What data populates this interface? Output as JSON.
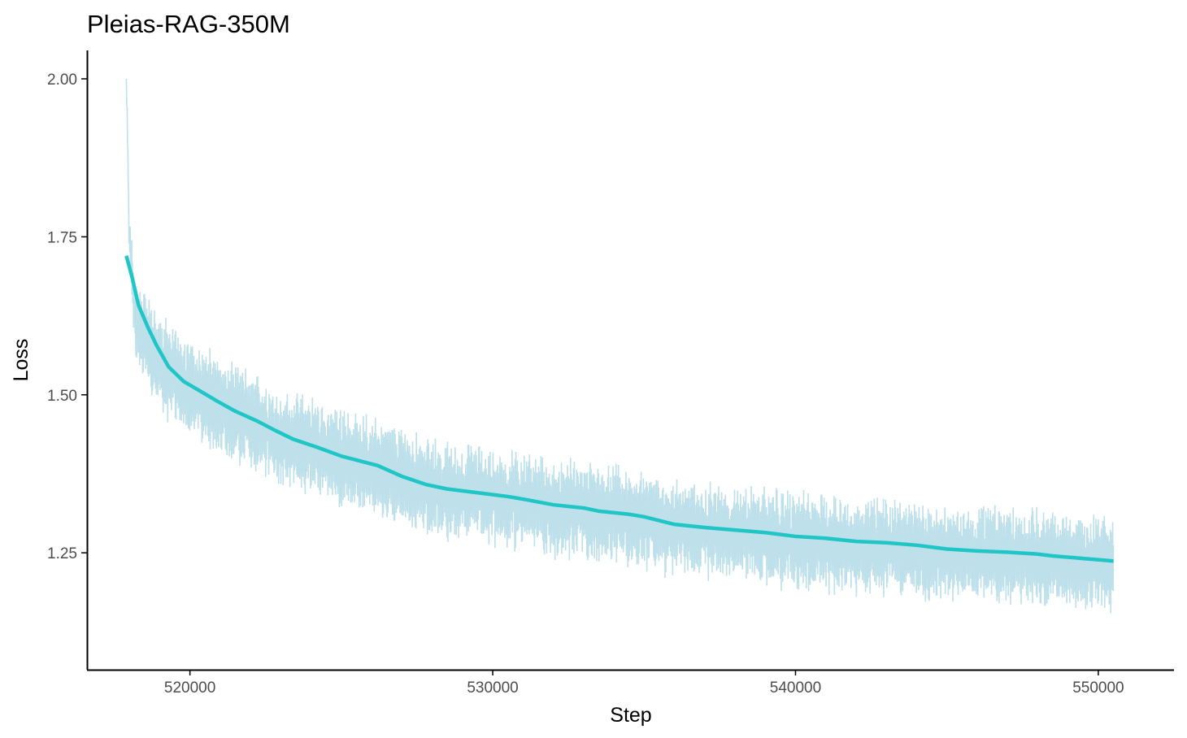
{
  "chart_data": {
    "type": "line",
    "title": "Pleias-RAG-350M",
    "xlabel": "Step",
    "ylabel": "Loss",
    "xlim": [
      516600,
      552500
    ],
    "ylim": [
      1.065,
      2.045
    ],
    "x_ticks": [
      520000,
      530000,
      540000,
      550000
    ],
    "x_tick_labels": [
      "520000",
      "530000",
      "540000",
      "550000"
    ],
    "y_ticks": [
      1.25,
      1.5,
      1.75,
      2.0
    ],
    "y_tick_labels": [
      "1.25",
      "1.50",
      "1.75",
      "2.00"
    ],
    "grid": false,
    "legend": "none",
    "colors": {
      "raw": "#add8e6",
      "smooth": "#20c5c5",
      "axis": "#000000",
      "tick_text": "#4d4d4d"
    },
    "series": [
      {
        "role": "raw",
        "style": "thin noisy line",
        "x": [
          517900,
          518000,
          518200,
          518400,
          518600,
          518800,
          519000,
          519500,
          520000,
          520500,
          521000,
          522000,
          523000,
          524000,
          525000,
          526000,
          527000,
          528000,
          529000,
          530000,
          531000,
          532000,
          533000,
          534000,
          535000,
          536000,
          537000,
          538000,
          539000,
          540000,
          541000,
          542000,
          543000,
          544000,
          545000,
          546000,
          547000,
          548000,
          549000,
          550000,
          550500
        ],
        "y": [
          2.0,
          1.74,
          1.62,
          1.6,
          1.58,
          1.56,
          1.55,
          1.53,
          1.51,
          1.5,
          1.48,
          1.46,
          1.43,
          1.42,
          1.4,
          1.39,
          1.37,
          1.35,
          1.345,
          1.34,
          1.33,
          1.32,
          1.315,
          1.31,
          1.3,
          1.29,
          1.285,
          1.28,
          1.275,
          1.27,
          1.265,
          1.26,
          1.26,
          1.255,
          1.25,
          1.25,
          1.245,
          1.24,
          1.24,
          1.235,
          1.23
        ],
        "spread": [
          0.0,
          0.03,
          0.06,
          0.07,
          0.07,
          0.07,
          0.07,
          0.07,
          0.07,
          0.07,
          0.07,
          0.07,
          0.07,
          0.07,
          0.07,
          0.07,
          0.07,
          0.07,
          0.07,
          0.07,
          0.07,
          0.07,
          0.07,
          0.07,
          0.07,
          0.07,
          0.07,
          0.07,
          0.07,
          0.07,
          0.07,
          0.07,
          0.07,
          0.07,
          0.07,
          0.07,
          0.07,
          0.07,
          0.07,
          0.07,
          0.07
        ]
      },
      {
        "role": "smooth",
        "style": "thick smoothed line",
        "x": [
          517900,
          518100,
          518300,
          518600,
          518900,
          519300,
          519800,
          520300,
          520900,
          521500,
          522200,
          522800,
          523400,
          524200,
          525000,
          526200,
          527000,
          527800,
          528500,
          529500,
          530500,
          531000,
          532000,
          533000,
          533500,
          534500,
          535000,
          536000,
          537000,
          538000,
          539000,
          540000,
          541000,
          542000,
          543000,
          544000,
          545000,
          546000,
          547000,
          548000,
          548500,
          549500,
          550500
        ],
        "y": [
          1.72,
          1.684,
          1.642,
          1.608,
          1.578,
          1.544,
          1.521,
          1.507,
          1.49,
          1.474,
          1.459,
          1.444,
          1.43,
          1.417,
          1.403,
          1.388,
          1.371,
          1.358,
          1.351,
          1.345,
          1.339,
          1.335,
          1.326,
          1.321,
          1.316,
          1.311,
          1.307,
          1.295,
          1.29,
          1.286,
          1.282,
          1.276,
          1.273,
          1.268,
          1.266,
          1.262,
          1.256,
          1.253,
          1.251,
          1.248,
          1.245,
          1.241,
          1.237
        ]
      }
    ]
  }
}
